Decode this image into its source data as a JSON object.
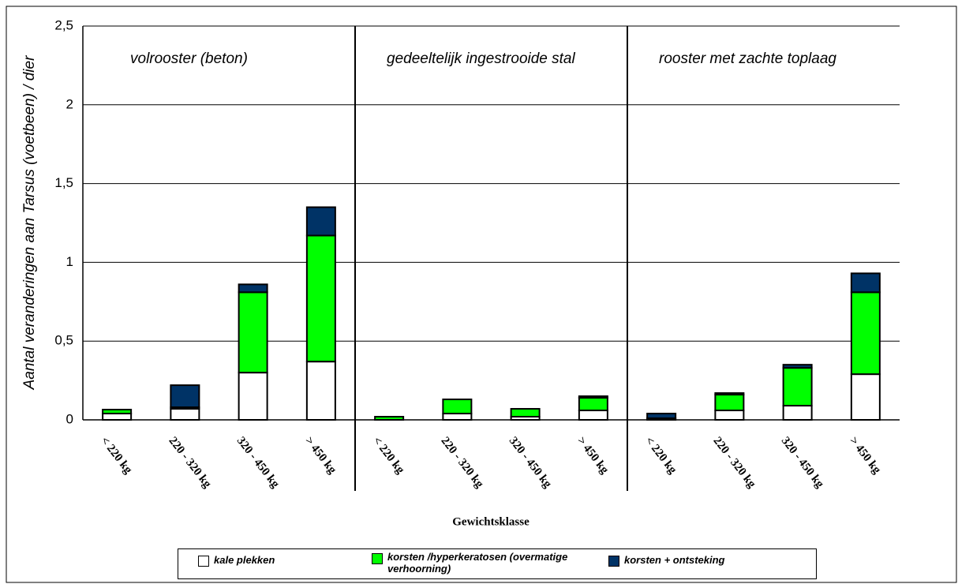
{
  "chart_data": {
    "type": "stacked_bar",
    "y_label": "Aantal veranderingen aan Tarsus (voetbeen) / dier",
    "x_label": "Gewichtsklasse",
    "groups": [
      "volrooster (beton)",
      "gedeeltelijk ingestrooide stal",
      "rooster met zachte toplaag"
    ],
    "categories": [
      "< 220 kg",
      "220 - 320 kg",
      "320 - 450 kg",
      "> 450 kg",
      "< 220 kg",
      "220 - 320 kg",
      "320 - 450 kg",
      "> 450 kg",
      "< 220 kg",
      "220 - 320 kg",
      "320 - 450 kg",
      "> 450 kg"
    ],
    "series": [
      {
        "name": "kale plekken",
        "color": "#ffffff",
        "values": [
          0.04,
          0.07,
          0.3,
          0.37,
          0,
          0.04,
          0.02,
          0.06,
          0.01,
          0.06,
          0.09,
          0.29
        ]
      },
      {
        "name": "korsten /hyperkeratosen (overmatige verhoorning)",
        "color": "#00ff00",
        "values": [
          0.025,
          0.01,
          0.51,
          0.8,
          0.02,
          0.09,
          0.05,
          0.08,
          0,
          0.1,
          0.24,
          0.52
        ]
      },
      {
        "name": "korsten + ontsteking",
        "color": "#003366",
        "values": [
          0,
          0.14,
          0.05,
          0.18,
          0,
          0,
          0,
          0.01,
          0.03,
          0.01,
          0.02,
          0.12
        ]
      }
    ],
    "ylim": [
      0,
      2.5
    ],
    "yticks": [
      0,
      {
        "value": 0.5,
        "label": "0,5"
      },
      1,
      {
        "value": 1.5,
        "label": "1,5"
      },
      2,
      {
        "value": 2.5,
        "label": "2,5"
      }
    ],
    "grid": true
  }
}
